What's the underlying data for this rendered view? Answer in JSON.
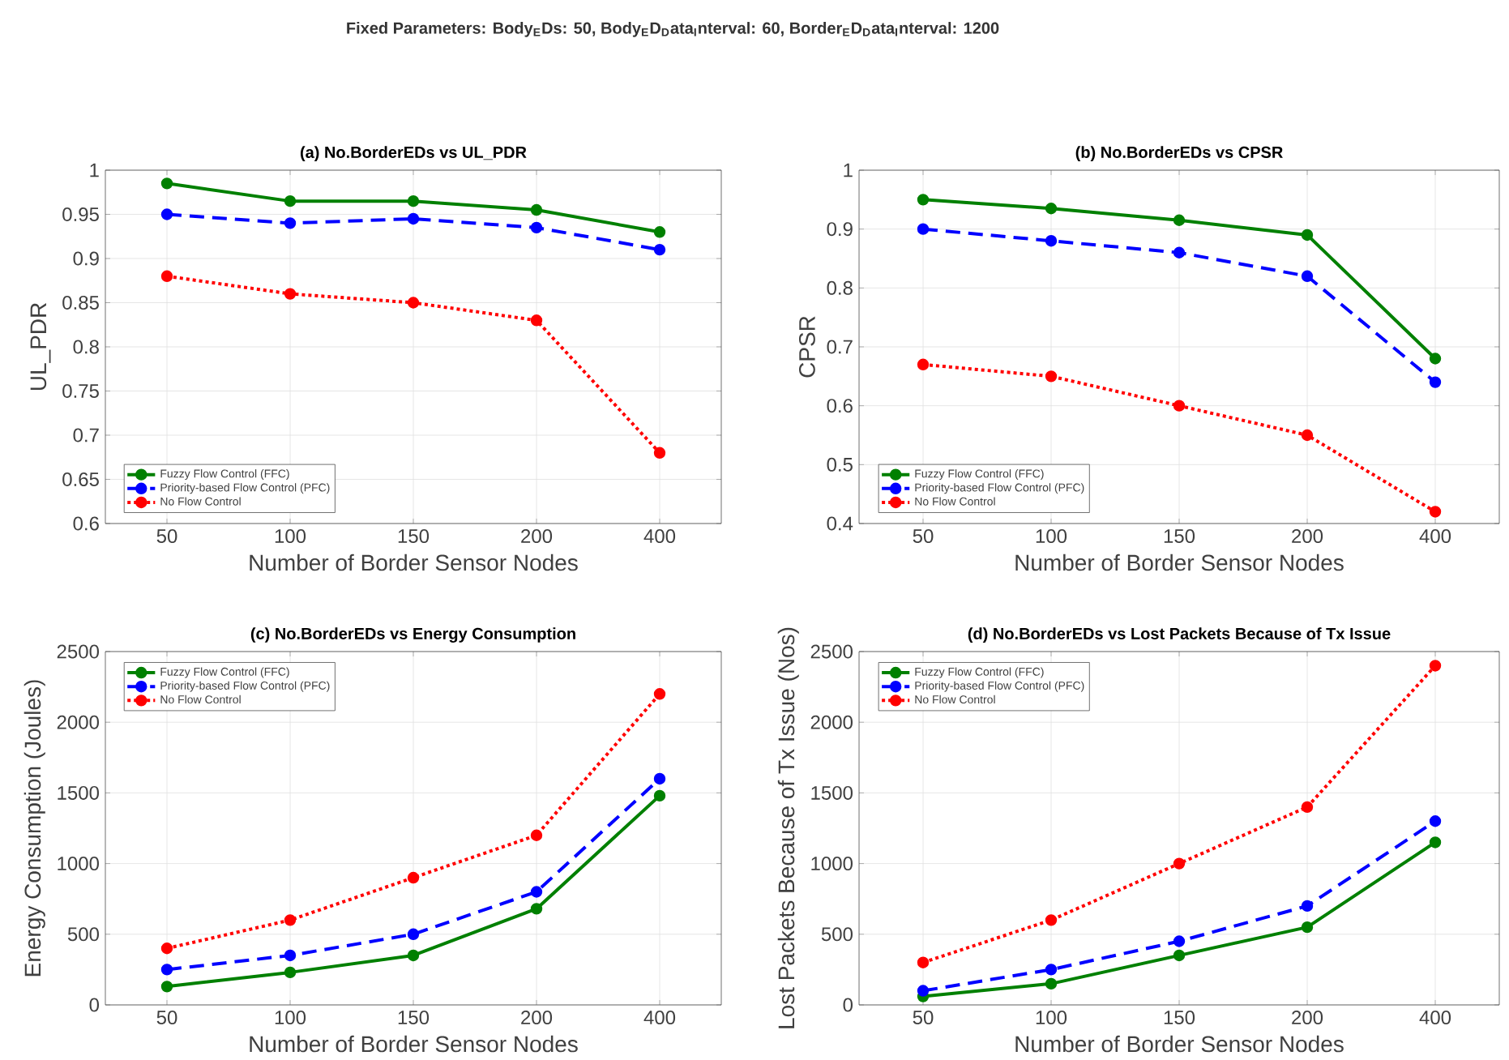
{
  "chart_data": [
    {
      "type": "line",
      "title": "(a)  No.BorderEDs  vs  UL_PDR",
      "xlabel": "Number of Border Sensor Nodes",
      "ylabel": "UL_PDR",
      "annotations": [
        "Fixed  Parameters:  Body$_{E}$Ds:  50,  Body$_{E}$D$_{D}$ata$_{I}$nterval:  60,  Border$_{E}$D$_{D}$ata$_{I}$nterval:  1200"
      ],
      "categories": [
        "50",
        "100",
        "150",
        "200",
        "400"
      ],
      "ylim": [
        0.6,
        1
      ],
      "yticks": [
        0.6,
        0.65,
        0.7,
        0.75,
        0.8,
        0.85,
        0.9,
        0.95,
        1
      ],
      "grid": true,
      "legend": "bottom left",
      "marker": "circle",
      "series": [
        {
          "name": "Fuzzy Flow Control (FFC)",
          "color": "#008000",
          "line_style": "solid",
          "values": [
            0.985,
            0.965,
            0.965,
            0.955,
            0.93
          ]
        },
        {
          "name": "Priority-based Flow Control (PFC)",
          "color": "#0000ff",
          "line_style": "dashed",
          "values": [
            0.95,
            0.94,
            0.945,
            0.935,
            0.91
          ]
        },
        {
          "name": "No Flow Control",
          "color": "#ff0000",
          "line_style": "dotted",
          "values": [
            0.88,
            0.86,
            0.85,
            0.83,
            0.68
          ]
        }
      ]
    },
    {
      "type": "line",
      "title": "(b) No.BorderEDs vs CPSR",
      "xlabel": "Number of Border Sensor Nodes",
      "ylabel": "CPSR",
      "categories": [
        "50",
        "100",
        "150",
        "200",
        "400"
      ],
      "ylim": [
        0.4,
        1
      ],
      "yticks": [
        0.4,
        0.5,
        0.6,
        0.7,
        0.8,
        0.9,
        1
      ],
      "grid": true,
      "legend": "bottom left",
      "marker": "circle",
      "series": [
        {
          "name": "Fuzzy Flow Control (FFC)",
          "color": "#008000",
          "line_style": "solid",
          "values": [
            0.95,
            0.935,
            0.915,
            0.89,
            0.68
          ]
        },
        {
          "name": "Priority-based Flow Control (PFC)",
          "color": "#0000ff",
          "line_style": "dashed",
          "values": [
            0.9,
            0.88,
            0.86,
            0.82,
            0.64
          ]
        },
        {
          "name": "No Flow Control",
          "color": "#ff0000",
          "line_style": "dotted",
          "values": [
            0.67,
            0.65,
            0.6,
            0.55,
            0.42
          ]
        }
      ]
    },
    {
      "type": "line",
      "title": "(c) No.BorderEDs vs Energy Consumption",
      "xlabel": "Number of Border Sensor Nodes",
      "ylabel": "Energy Consumption (Joules)",
      "categories": [
        "50",
        "100",
        "150",
        "200",
        "400"
      ],
      "ylim": [
        0,
        2500
      ],
      "yticks": [
        0,
        500,
        1000,
        1500,
        2000,
        2500
      ],
      "grid": true,
      "legend": "top left",
      "marker": "circle",
      "series": [
        {
          "name": "Fuzzy Flow Control (FFC)",
          "color": "#008000",
          "line_style": "solid",
          "values": [
            130,
            230,
            350,
            680,
            1480
          ]
        },
        {
          "name": "Priority-based Flow Control (PFC)",
          "color": "#0000ff",
          "line_style": "dashed",
          "values": [
            250,
            350,
            500,
            800,
            1600
          ]
        },
        {
          "name": "No Flow Control",
          "color": "#ff0000",
          "line_style": "dotted",
          "values": [
            400,
            600,
            900,
            1200,
            2200
          ]
        }
      ]
    },
    {
      "type": "line",
      "title": "(d) No.BorderEDs vs Lost Packets Because of Tx Issue",
      "xlabel": "Number of Border Sensor Nodes",
      "ylabel": "Lost Packets Because of Tx Issue (Nos)",
      "categories": [
        "50",
        "100",
        "150",
        "200",
        "400"
      ],
      "ylim": [
        0,
        2500
      ],
      "yticks": [
        0,
        500,
        1000,
        1500,
        2000,
        2500
      ],
      "grid": true,
      "legend": "top left",
      "marker": "circle",
      "series": [
        {
          "name": "Fuzzy Flow Control (FFC)",
          "color": "#008000",
          "line_style": "solid",
          "values": [
            60,
            150,
            350,
            550,
            1150
          ]
        },
        {
          "name": "Priority-based Flow Control (PFC)",
          "color": "#0000ff",
          "line_style": "dashed",
          "values": [
            100,
            250,
            450,
            700,
            1300
          ]
        },
        {
          "name": "No Flow Control",
          "color": "#ff0000",
          "line_style": "dotted",
          "values": [
            300,
            600,
            1000,
            1400,
            2400
          ]
        }
      ]
    }
  ]
}
